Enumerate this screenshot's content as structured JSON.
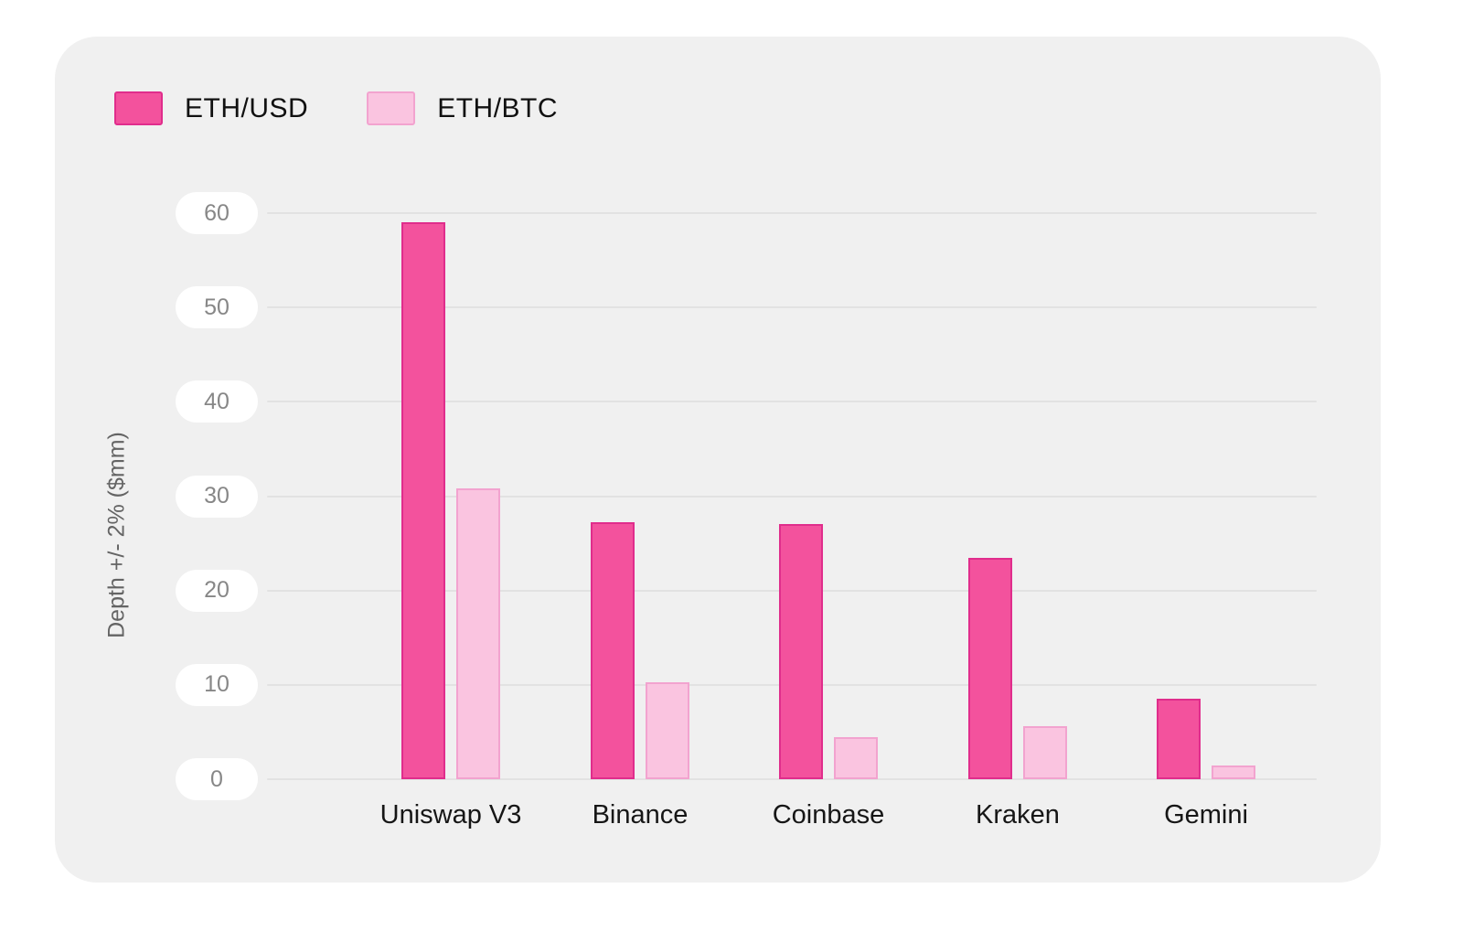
{
  "legend": {
    "items": [
      {
        "label": "ETH/USD",
        "color": "#f3529d",
        "border": "#e02d8c"
      },
      {
        "label": "ETH/BTC",
        "color": "#fac4e0",
        "border": "#f2a3cf"
      }
    ]
  },
  "colors": {
    "card_background": "#f0f0f0",
    "gridline": "#e2e2e2",
    "tick_text": "#878787",
    "axis_title_text": "#646464",
    "category_text": "#161616",
    "tick_pill_background": "#ffffff"
  },
  "chart_data": {
    "type": "bar",
    "title": "",
    "xlabel": "",
    "ylabel": "Depth +/- 2% ($mm)",
    "categories": [
      "Uniswap V3",
      "Binance",
      "Coinbase",
      "Kraken",
      "Gemini"
    ],
    "series": [
      {
        "name": "ETH/USD",
        "values": [
          59,
          27.2,
          27,
          23.5,
          8.5
        ]
      },
      {
        "name": "ETH/BTC",
        "values": [
          30.8,
          10.3,
          4.5,
          5.6,
          1.5
        ]
      }
    ],
    "ylim": [
      0,
      60
    ],
    "yticks": [
      60,
      50,
      40,
      30,
      20,
      10,
      0
    ],
    "grid": true,
    "legend_position": "top-left"
  }
}
